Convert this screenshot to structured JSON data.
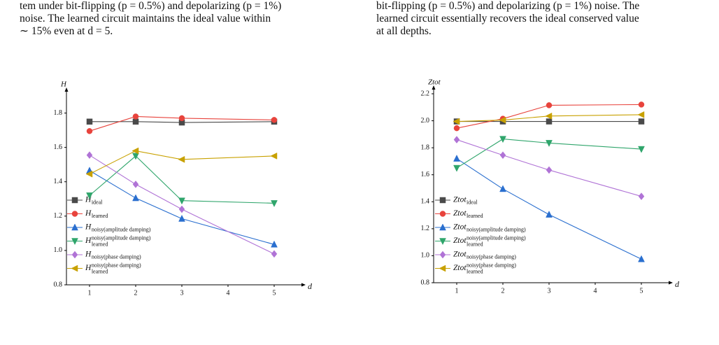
{
  "text": {
    "left": [
      "tem under bit-flipping (p = 0.5%) and depolarizing (p = 1%)",
      "noise.  The learned circuit maintains the ideal value within",
      "∼ 15% even at d = 5."
    ],
    "right": [
      "bit-flipping (p = 0.5%) and depolarizing (p = 1%) noise. The",
      "learned circuit essentially recovers the ideal conserved value",
      "at all depths."
    ]
  },
  "chart_data": [
    {
      "type": "line",
      "ylabel": "H",
      "xlabel": "d",
      "x": [
        1,
        2,
        3,
        5
      ],
      "xlim": [
        0.5,
        5.5
      ],
      "xticks": [
        1,
        2,
        3,
        4,
        5
      ],
      "ylim": [
        0.8,
        1.9
      ],
      "yticks": [
        0.8,
        {
          "value": 1,
          "label": "1.0"
        },
        1.2,
        1.4,
        1.6,
        1.8
      ],
      "series": [
        {
          "name": {
            "main": "H",
            "sub": "ideal"
          },
          "color": "#4a4a4a",
          "marker": "square",
          "values": [
            1.75,
            1.75,
            1.745,
            1.75
          ]
        },
        {
          "name": {
            "main": "H",
            "sub": "learned"
          },
          "color": "#e8433c",
          "marker": "circle",
          "values": [
            1.695,
            1.78,
            1.77,
            1.76
          ]
        },
        {
          "name": {
            "main": "H",
            "sub": "noisy(amplitude damping)"
          },
          "color": "#2a6fcf",
          "marker": "triangle-up",
          "values": [
            1.465,
            1.305,
            1.185,
            1.035
          ]
        },
        {
          "name": {
            "main": "H",
            "sub": "learned",
            "sup": "noisy(amplitude damping)"
          },
          "color": "#2fa56b",
          "marker": "triangle-down",
          "values": [
            1.32,
            1.55,
            1.29,
            1.275
          ]
        },
        {
          "name": {
            "main": "H",
            "sub": "noisy(phase damping)"
          },
          "color": "#b073d6",
          "marker": "diamond",
          "values": [
            1.555,
            1.385,
            1.24,
            0.98
          ]
        },
        {
          "name": {
            "main": "H",
            "sub": "learned",
            "sup": "noisy(phase damping)"
          },
          "color": "#c8a100",
          "marker": "triangle-left",
          "values": [
            1.445,
            1.58,
            1.53,
            1.55
          ]
        }
      ]
    },
    {
      "type": "line",
      "ylabel": "Ztot",
      "xlabel": "d",
      "x": [
        1,
        2,
        3,
        5
      ],
      "xlim": [
        0.5,
        5.5
      ],
      "xticks": [
        1,
        2,
        3,
        4,
        5
      ],
      "ylim": [
        0.8,
        2.2
      ],
      "yticks": [
        0.8,
        {
          "value": 1,
          "label": "1.0"
        },
        1.2,
        1.4,
        1.6,
        1.8,
        {
          "value": 2,
          "label": "2.0"
        },
        2.2
      ],
      "series": [
        {
          "name": {
            "main": "Ztot",
            "sub": "ideal"
          },
          "color": "#4a4a4a",
          "marker": "square",
          "values": [
            1.995,
            1.995,
            1.995,
            1.995
          ]
        },
        {
          "name": {
            "main": "Ztot",
            "sub": "learned"
          },
          "color": "#e8433c",
          "marker": "circle",
          "values": [
            1.945,
            2.015,
            2.115,
            2.12
          ]
        },
        {
          "name": {
            "main": "Ztot",
            "sub": "noisy(amplitude damping)"
          },
          "color": "#2a6fcf",
          "marker": "triangle-up",
          "values": [
            1.72,
            1.495,
            1.305,
            0.975
          ]
        },
        {
          "name": {
            "main": "Ztot",
            "sub": "learned",
            "sup": "noisy(amplitude damping)"
          },
          "color": "#2fa56b",
          "marker": "triangle-down",
          "values": [
            1.65,
            1.865,
            1.835,
            1.79
          ]
        },
        {
          "name": {
            "main": "Ztot",
            "sub": "noisy(phase damping)"
          },
          "color": "#b073d6",
          "marker": "diamond",
          "values": [
            1.86,
            1.745,
            1.635,
            1.44
          ]
        },
        {
          "name": {
            "main": "Ztot",
            "sub": "learned",
            "sup": "noisy(phase damping)"
          },
          "color": "#c8a100",
          "marker": "triangle-left",
          "values": [
            1.995,
            2.005,
            2.035,
            2.045
          ]
        }
      ]
    }
  ]
}
